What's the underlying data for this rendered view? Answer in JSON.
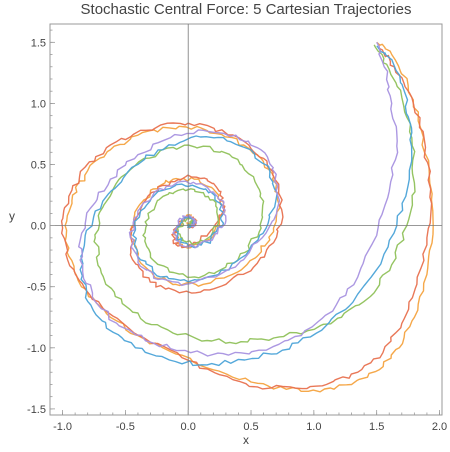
{
  "chart_data": {
    "type": "line",
    "title": "Stochastic Central Force: 5 Cartesian Trajectories",
    "xlabel": "x",
    "ylabel": "y",
    "xlim": [
      -1.1,
      2.02
    ],
    "ylim": [
      -1.55,
      1.65
    ],
    "x_ticks": [
      -1.0,
      -0.5,
      0.0,
      0.5,
      1.0,
      1.5,
      2.0
    ],
    "x_tick_labels": [
      "-1.0",
      "-0.5",
      "0.0",
      "0.5",
      "1.0",
      "1.5",
      "2.0"
    ],
    "y_ticks": [
      -1.5,
      -1.0,
      -0.5,
      0.0,
      0.5,
      1.0,
      1.5
    ],
    "y_tick_labels": [
      "-1.5",
      "-1.0",
      "-0.5",
      "0.0",
      "0.5",
      "1.0",
      "1.5"
    ],
    "origin_axes": true,
    "grid": false,
    "legend": "none",
    "series": [
      {
        "color": "#f4a340",
        "x": [
          1.5,
          1.62,
          1.75,
          1.85,
          1.92,
          1.95,
          1.9,
          1.8,
          1.68,
          1.52,
          1.3,
          1.05,
          0.78,
          0.5,
          0.2,
          -0.1,
          -0.4,
          -0.65,
          -0.85,
          -0.95,
          -0.98,
          -0.92,
          -0.8,
          -0.62,
          -0.4,
          -0.15,
          0.1,
          0.35,
          0.55,
          0.68,
          0.72,
          0.68,
          0.55,
          0.35,
          0.12,
          -0.1,
          -0.28,
          -0.4,
          -0.45,
          -0.4,
          -0.28,
          -0.12,
          0.05,
          0.2,
          0.28,
          0.25,
          0.15,
          0.02,
          -0.08,
          -0.1,
          -0.05,
          0.02,
          0.06,
          0.03,
          0.0
        ],
        "y": [
          1.5,
          1.4,
          1.15,
          0.8,
          0.4,
          0.0,
          -0.4,
          -0.75,
          -1.0,
          -1.18,
          -1.3,
          -1.36,
          -1.34,
          -1.28,
          -1.18,
          -1.05,
          -0.9,
          -0.72,
          -0.5,
          -0.25,
          0.0,
          0.25,
          0.45,
          0.62,
          0.74,
          0.8,
          0.8,
          0.72,
          0.58,
          0.4,
          0.18,
          -0.05,
          -0.25,
          -0.4,
          -0.48,
          -0.48,
          -0.4,
          -0.25,
          -0.05,
          0.15,
          0.3,
          0.38,
          0.38,
          0.3,
          0.15,
          0.0,
          -0.12,
          -0.18,
          -0.15,
          -0.05,
          0.05,
          0.08,
          0.04,
          0.0,
          0.01
        ]
      },
      {
        "color": "#e8714f",
        "x": [
          1.52,
          1.64,
          1.78,
          1.88,
          1.93,
          1.9,
          1.82,
          1.7,
          1.55,
          1.35,
          1.1,
          0.85,
          0.55,
          0.25,
          -0.05,
          -0.35,
          -0.6,
          -0.82,
          -0.96,
          -1.0,
          -0.95,
          -0.82,
          -0.62,
          -0.38,
          -0.12,
          0.15,
          0.4,
          0.6,
          0.72,
          0.75,
          0.68,
          0.52,
          0.3,
          0.06,
          -0.18,
          -0.36,
          -0.46,
          -0.46,
          -0.36,
          -0.2,
          -0.02,
          0.15,
          0.26,
          0.28,
          0.2,
          0.07,
          -0.05,
          -0.12,
          -0.1,
          -0.03,
          0.04,
          0.06,
          0.02
        ],
        "y": [
          1.45,
          1.3,
          1.05,
          0.7,
          0.3,
          -0.1,
          -0.48,
          -0.8,
          -1.04,
          -1.2,
          -1.3,
          -1.33,
          -1.32,
          -1.22,
          -1.08,
          -0.92,
          -0.74,
          -0.52,
          -0.28,
          -0.02,
          0.24,
          0.48,
          0.66,
          0.78,
          0.84,
          0.82,
          0.72,
          0.55,
          0.34,
          0.1,
          -0.14,
          -0.34,
          -0.48,
          -0.55,
          -0.52,
          -0.42,
          -0.24,
          -0.03,
          0.18,
          0.33,
          0.4,
          0.38,
          0.28,
          0.12,
          -0.02,
          -0.14,
          -0.18,
          -0.12,
          -0.02,
          0.06,
          0.07,
          0.02,
          -0.01
        ]
      },
      {
        "color": "#8fc15a",
        "x": [
          1.48,
          1.58,
          1.7,
          1.78,
          1.8,
          1.74,
          1.62,
          1.45,
          1.22,
          0.95,
          0.68,
          0.42,
          0.15,
          -0.12,
          -0.38,
          -0.58,
          -0.7,
          -0.74,
          -0.68,
          -0.55,
          -0.35,
          -0.12,
          0.12,
          0.35,
          0.52,
          0.6,
          0.58,
          0.45,
          0.26,
          0.05,
          -0.15,
          -0.3,
          -0.36,
          -0.32,
          -0.2,
          -0.04,
          0.12,
          0.22,
          0.24,
          0.16,
          0.05,
          -0.05,
          -0.08,
          -0.04,
          0.02,
          0.04,
          0.01
        ],
        "y": [
          1.48,
          1.32,
          1.05,
          0.72,
          0.35,
          0.0,
          -0.32,
          -0.58,
          -0.75,
          -0.86,
          -0.92,
          -0.95,
          -0.94,
          -0.88,
          -0.76,
          -0.58,
          -0.35,
          -0.1,
          0.15,
          0.38,
          0.55,
          0.64,
          0.65,
          0.56,
          0.4,
          0.2,
          -0.02,
          -0.22,
          -0.36,
          -0.42,
          -0.38,
          -0.26,
          -0.08,
          0.1,
          0.24,
          0.3,
          0.27,
          0.16,
          0.02,
          -0.1,
          -0.15,
          -0.12,
          -0.04,
          0.04,
          0.06,
          0.02,
          0.0
        ]
      },
      {
        "color": "#4ba3d8",
        "x": [
          1.5,
          1.62,
          1.72,
          1.78,
          1.76,
          1.66,
          1.5,
          1.28,
          1.02,
          0.75,
          0.45,
          0.15,
          -0.15,
          -0.42,
          -0.65,
          -0.8,
          -0.86,
          -0.82,
          -0.68,
          -0.48,
          -0.24,
          0.02,
          0.28,
          0.5,
          0.65,
          0.7,
          0.62,
          0.46,
          0.24,
          0.0,
          -0.22,
          -0.38,
          -0.44,
          -0.38,
          -0.24,
          -0.05,
          0.14,
          0.26,
          0.28,
          0.18,
          0.05,
          -0.06,
          -0.1,
          -0.05,
          0.02,
          0.05,
          0.01
        ],
        "y": [
          1.47,
          1.36,
          1.1,
          0.76,
          0.38,
          0.0,
          -0.36,
          -0.66,
          -0.88,
          -1.02,
          -1.1,
          -1.14,
          -1.1,
          -1.0,
          -0.84,
          -0.62,
          -0.36,
          -0.08,
          0.2,
          0.44,
          0.62,
          0.72,
          0.72,
          0.62,
          0.44,
          0.22,
          -0.02,
          -0.24,
          -0.4,
          -0.46,
          -0.42,
          -0.28,
          -0.08,
          0.12,
          0.28,
          0.34,
          0.3,
          0.18,
          0.02,
          -0.12,
          -0.18,
          -0.14,
          -0.04,
          0.05,
          0.07,
          0.02,
          0.0
        ]
      },
      {
        "color": "#a892e0",
        "x": [
          1.5,
          1.56,
          1.62,
          1.66,
          1.6,
          1.5,
          1.35,
          1.15,
          0.9,
          0.62,
          0.32,
          0.02,
          -0.28,
          -0.55,
          -0.74,
          -0.84,
          -0.86,
          -0.78,
          -0.62,
          -0.4,
          -0.14,
          0.12,
          0.38,
          0.58,
          0.7,
          0.72,
          0.62,
          0.44,
          0.22,
          -0.02,
          -0.24,
          -0.4,
          -0.46,
          -0.4,
          -0.26,
          -0.06,
          0.14,
          0.28,
          0.3,
          0.2,
          0.06,
          -0.06,
          -0.12,
          -0.08,
          0.0,
          0.06,
          0.03
        ],
        "y": [
          1.5,
          1.3,
          1.0,
          0.65,
          0.28,
          -0.08,
          -0.42,
          -0.7,
          -0.9,
          -1.02,
          -1.06,
          -1.04,
          -0.96,
          -0.82,
          -0.62,
          -0.38,
          -0.12,
          0.14,
          0.38,
          0.58,
          0.72,
          0.78,
          0.74,
          0.62,
          0.42,
          0.18,
          -0.06,
          -0.28,
          -0.42,
          -0.48,
          -0.44,
          -0.3,
          -0.1,
          0.12,
          0.28,
          0.36,
          0.32,
          0.2,
          0.04,
          -0.1,
          -0.18,
          -0.16,
          -0.06,
          0.04,
          0.08,
          0.04,
          0.0
        ]
      }
    ]
  }
}
